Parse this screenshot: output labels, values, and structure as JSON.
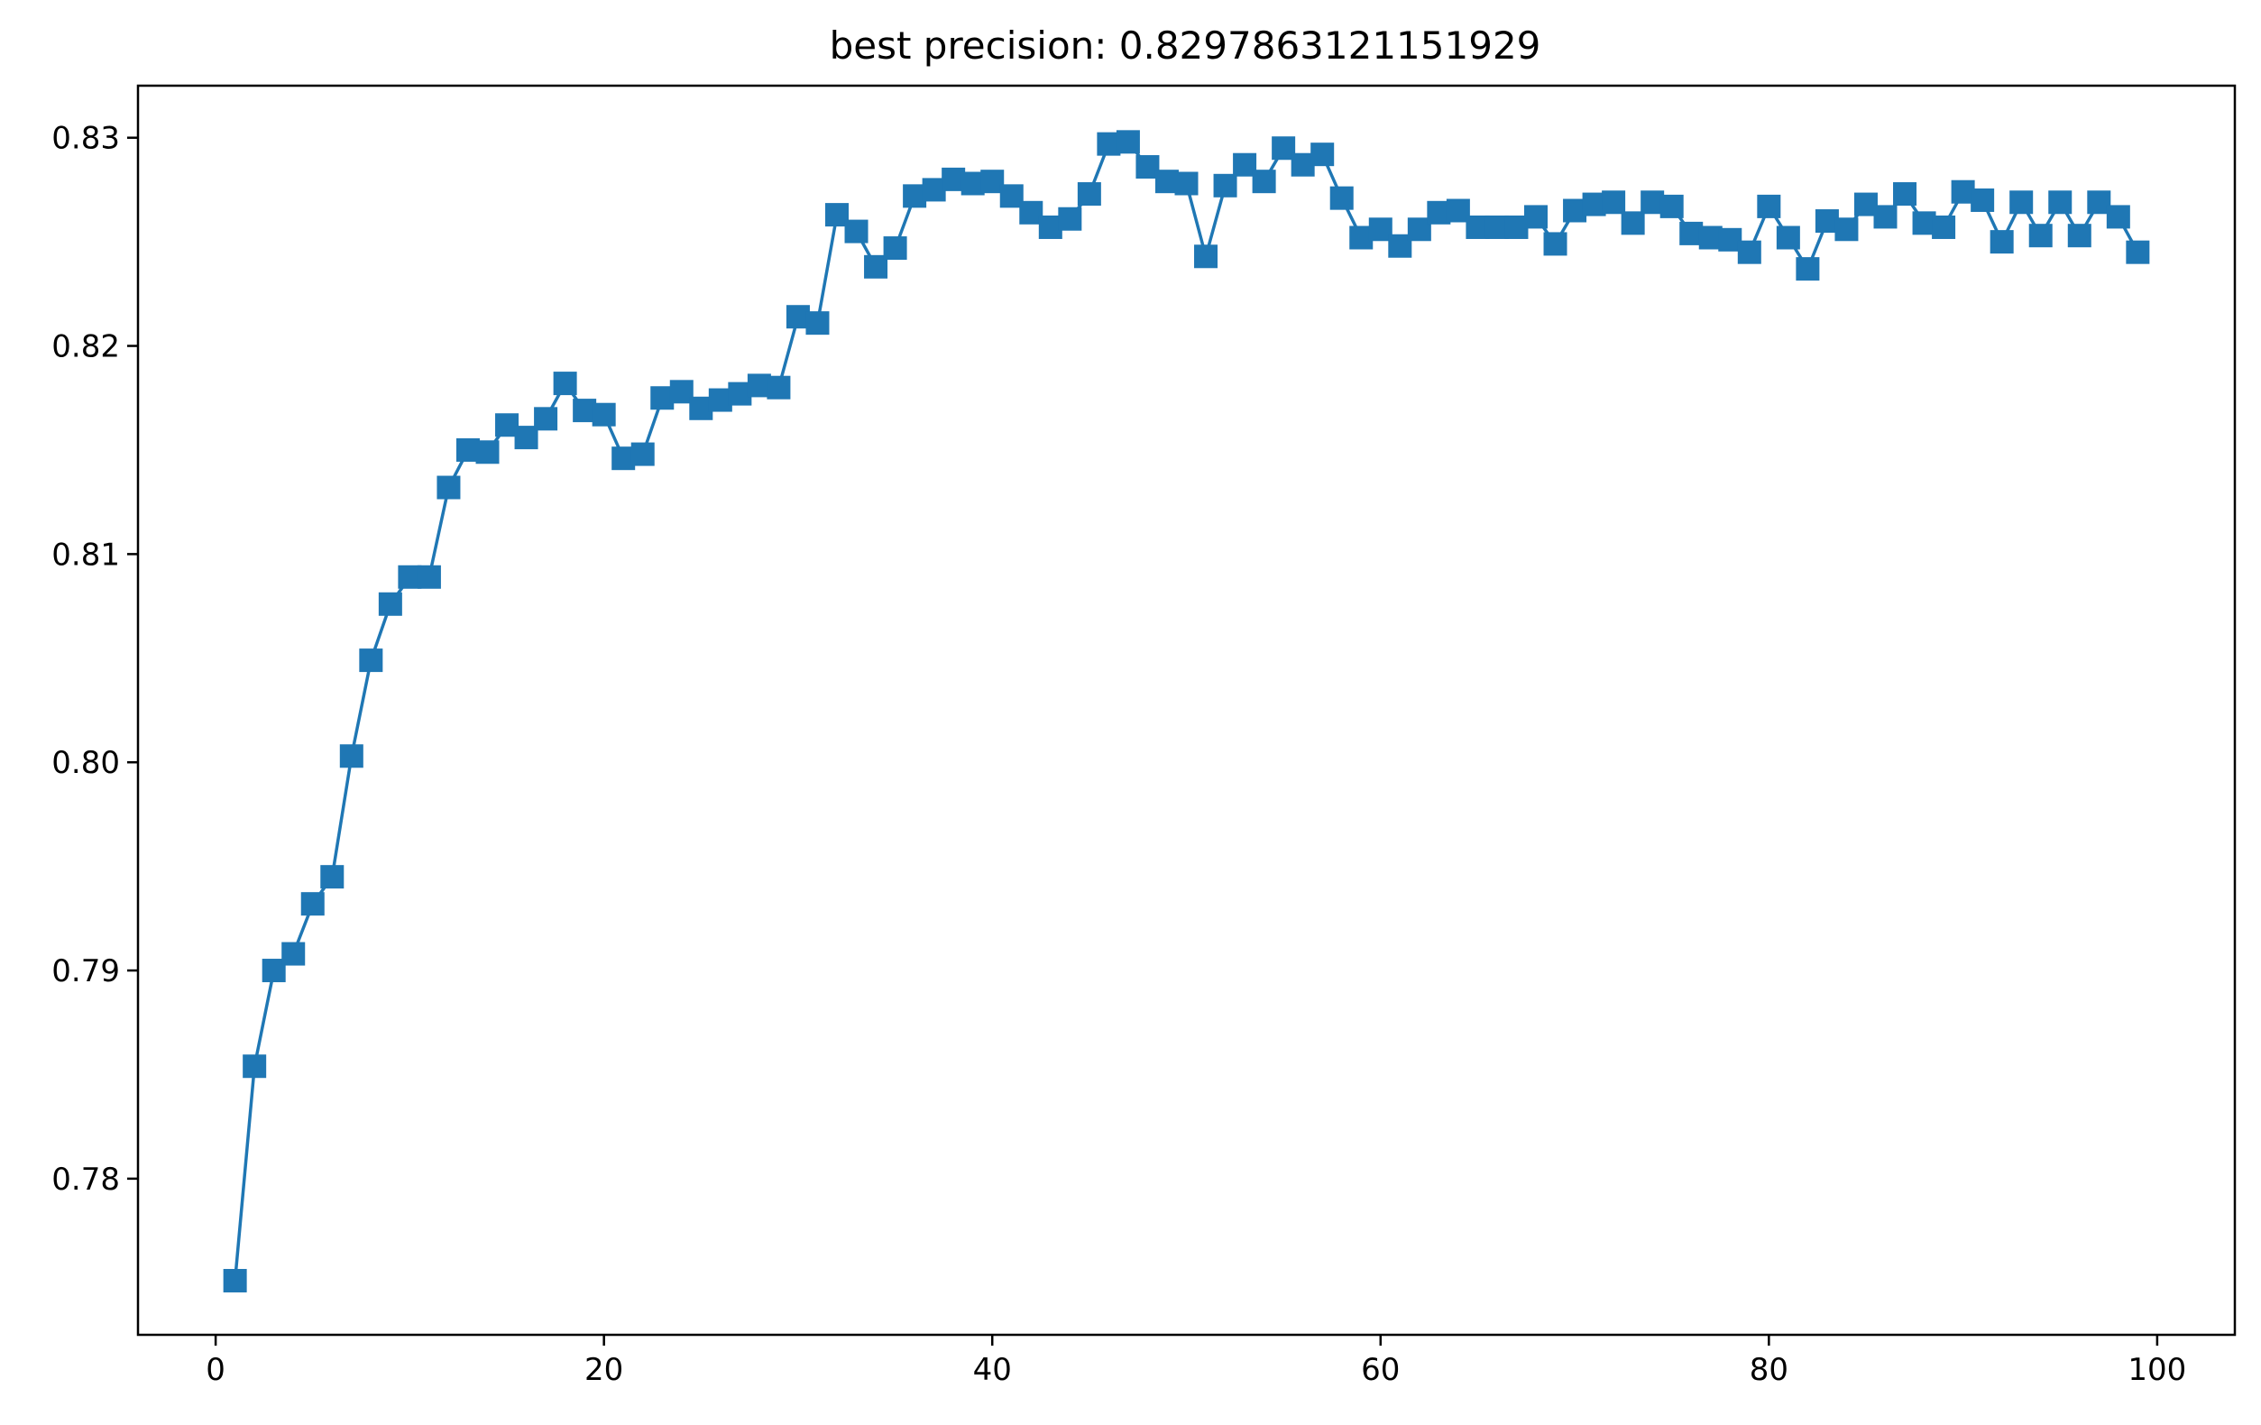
{
  "chart_data": {
    "type": "line",
    "title": "best precision: 0.8297863121151929",
    "xlabel": "",
    "ylabel": "",
    "xlim": [
      -4,
      104
    ],
    "ylim": [
      0.7725,
      0.8325
    ],
    "xticks": [
      0,
      20,
      40,
      60,
      80,
      100
    ],
    "xtick_labels": [
      "0",
      "20",
      "40",
      "60",
      "80",
      "100"
    ],
    "yticks": [
      0.78,
      0.79,
      0.8,
      0.81,
      0.82,
      0.83
    ],
    "ytick_labels": [
      "0.78",
      "0.79",
      "0.80",
      "0.81",
      "0.82",
      "0.83"
    ],
    "grid": false,
    "legend": false,
    "marker": "square",
    "color": "#1f77b4",
    "series": [
      {
        "x": [
          1,
          2,
          3,
          4,
          5,
          6,
          7,
          8,
          9,
          10,
          11,
          12,
          13,
          14,
          15,
          16,
          17,
          18,
          19,
          20,
          21,
          22,
          23,
          24,
          25,
          26,
          27,
          28,
          29,
          30,
          31,
          32,
          33,
          34,
          35,
          36,
          37,
          38,
          39,
          40,
          41,
          42,
          43,
          44,
          45,
          46,
          47,
          48,
          49,
          50,
          51,
          52,
          53,
          54,
          55,
          56,
          57,
          58,
          59,
          60,
          61,
          62,
          63,
          64,
          65,
          66,
          67,
          68,
          69,
          70,
          71,
          72,
          73,
          74,
          75,
          76,
          77,
          78,
          79,
          80,
          81,
          82,
          83,
          84,
          85,
          86,
          87,
          88,
          89,
          90,
          91,
          92,
          93,
          94,
          95,
          96,
          97,
          98,
          99
        ],
        "y": [
          0.7751,
          0.7854,
          0.79,
          0.7908,
          0.7932,
          0.7945,
          0.8003,
          0.8049,
          0.8076,
          0.8089,
          0.8089,
          0.8132,
          0.815,
          0.8149,
          0.8162,
          0.8156,
          0.8165,
          0.8182,
          0.8169,
          0.8167,
          0.8146,
          0.8148,
          0.8175,
          0.8178,
          0.817,
          0.8174,
          0.8177,
          0.8181,
          0.818,
          0.8214,
          0.8211,
          0.8263,
          0.8255,
          0.8238,
          0.8247,
          0.8272,
          0.8275,
          0.828,
          0.8278,
          0.8279,
          0.8272,
          0.8264,
          0.8257,
          0.8261,
          0.8273,
          0.8297,
          0.8298,
          0.8286,
          0.8279,
          0.8278,
          0.8243,
          0.8277,
          0.8287,
          0.8279,
          0.8295,
          0.8287,
          0.8292,
          0.8271,
          0.8252,
          0.8256,
          0.8248,
          0.8256,
          0.8264,
          0.8265,
          0.8257,
          0.8257,
          0.8257,
          0.8262,
          0.8249,
          0.8265,
          0.8268,
          0.8269,
          0.8259,
          0.8269,
          0.8267,
          0.8254,
          0.8252,
          0.8251,
          0.8245,
          0.8267,
          0.8252,
          0.8237,
          0.826,
          0.8256,
          0.8268,
          0.8262,
          0.8273,
          0.8259,
          0.8257,
          0.8274,
          0.827,
          0.825,
          0.8269,
          0.8253,
          0.8269,
          0.8253,
          0.8269,
          0.8262,
          0.8245
        ]
      }
    ]
  }
}
